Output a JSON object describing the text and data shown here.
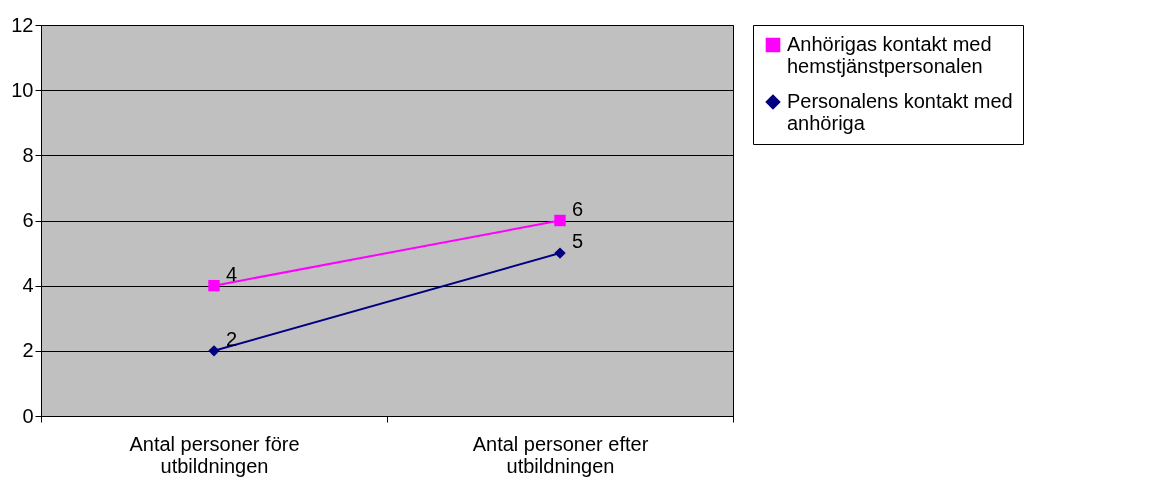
{
  "chart_data": {
    "type": "line",
    "categories": [
      "Antal personer före utbildningen",
      "Antal personer efter utbildningen"
    ],
    "series": [
      {
        "name": "Anhörigas kontakt med hemstjänstpersonalen",
        "color": "#ff00ff",
        "marker": "square",
        "values": [
          4,
          6
        ]
      },
      {
        "name": "Personalens kontakt med anhöriga",
        "color": "#000080",
        "marker": "diamond",
        "values": [
          2,
          5
        ]
      }
    ],
    "ylim": [
      0,
      12
    ],
    "yticks": [
      0,
      2,
      4,
      6,
      8,
      10,
      12
    ],
    "grid": "y",
    "legend": "right",
    "data_labels": true,
    "line_style": "solid"
  }
}
